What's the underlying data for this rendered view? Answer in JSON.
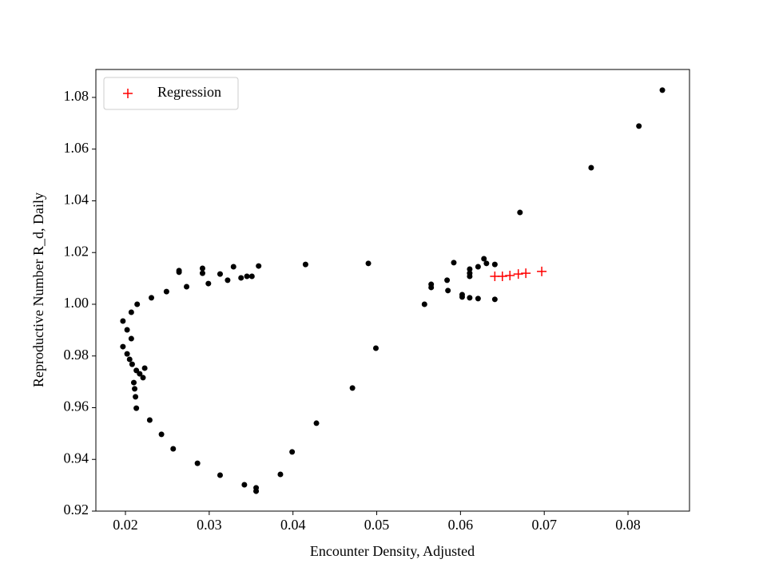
{
  "chart_data": {
    "type": "scatter",
    "x_label": "Encounter Density, Adjusted",
    "y_label": "Reproductive Number R_d, Daily",
    "xlim": [
      0.01647,
      0.08734
    ],
    "ylim": [
      0.92,
      1.0908
    ],
    "xticks": [
      0.02,
      0.03,
      0.04,
      0.05,
      0.06,
      0.07,
      0.08
    ],
    "yticks": [
      0.92,
      0.94,
      0.96,
      0.98,
      {
        "value": 1.0,
        "label": "1.00"
      },
      1.02,
      1.04,
      1.06,
      1.08
    ],
    "legend_position": "upper left",
    "series": [
      {
        "color": "#000000",
        "marker": "dot",
        "x": [
          0.0841,
          0.0813,
          0.0756,
          0.0671,
          0.0197,
          0.0202,
          0.0197,
          0.0207,
          0.0202,
          0.0205,
          0.0208,
          0.0213,
          0.0217,
          0.0221,
          0.0223,
          0.021,
          0.0211,
          0.0212,
          0.0213,
          0.0229,
          0.0243,
          0.0257,
          0.0286,
          0.0313,
          0.0342,
          0.0356,
          0.0356,
          0.0385,
          0.0399,
          0.0428,
          0.0471,
          0.0499,
          0.0207,
          0.0214,
          0.0231,
          0.0249,
          0.0264,
          0.0264,
          0.0273,
          0.0292,
          0.0292,
          0.0299,
          0.0313,
          0.0322,
          0.0329,
          0.0338,
          0.0345,
          0.0351,
          0.0359,
          0.0415,
          0.049,
          0.0557,
          0.0565,
          0.0565,
          0.0584,
          0.0585,
          0.0592,
          0.0602,
          0.0602,
          0.0611,
          0.0611,
          0.0611,
          0.0611,
          0.0621,
          0.0621,
          0.0628,
          0.0631,
          0.0641,
          0.0641
        ],
        "values": [
          1.0828,
          1.0689,
          1.0528,
          1.0355,
          0.9935,
          0.9901,
          0.9836,
          0.9867,
          0.9808,
          0.9787,
          0.9768,
          0.9744,
          0.9731,
          0.9716,
          0.9753,
          0.9697,
          0.9673,
          0.9642,
          0.9598,
          0.9552,
          0.9497,
          0.9441,
          0.9385,
          0.9339,
          0.9302,
          0.929,
          0.9277,
          0.9342,
          0.9429,
          0.954,
          0.9676,
          0.983,
          0.9969,
          1.0,
          1.0025,
          1.0049,
          1.013,
          1.0124,
          1.0068,
          1.0139,
          1.012,
          1.008,
          1.0117,
          1.0093,
          1.0145,
          1.0102,
          1.0108,
          1.0108,
          1.0148,
          1.0154,
          1.0158,
          1.0,
          1.0077,
          1.0065,
          1.0093,
          1.0053,
          1.0161,
          1.0037,
          1.0028,
          1.0025,
          1.0136,
          1.012,
          1.0108,
          1.0022,
          1.0145,
          1.0176,
          1.0158,
          1.0154,
          1.0019
        ]
      },
      {
        "name": "Regression",
        "color": "#ff0000",
        "marker": "plus",
        "x": [
          0.0641,
          0.065,
          0.0659,
          0.0669,
          0.0678,
          0.0697
        ],
        "values": [
          1.0108,
          1.0108,
          1.0111,
          1.0117,
          1.012,
          1.0127
        ]
      }
    ]
  }
}
